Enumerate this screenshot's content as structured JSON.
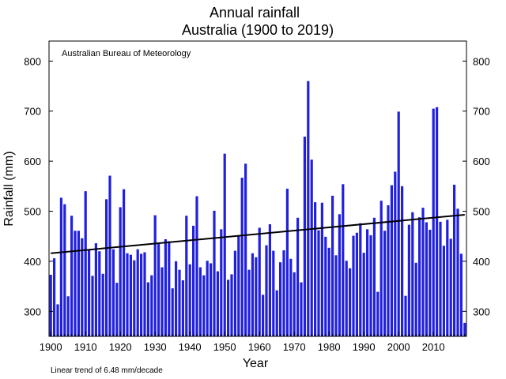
{
  "chart_data": {
    "type": "bar",
    "title": "Annual rainfall",
    "subtitle": "Australia (1900 to 2019)",
    "credit": "Australian Bureau of Meteorology",
    "xlabel": "Year",
    "ylabel": "Rainfall (mm)",
    "footnote": "Linear trend of 6.48 mm/decade",
    "ylim": [
      250,
      840
    ],
    "xlim": [
      1899.5,
      2019.5
    ],
    "yticks": [
      300,
      400,
      500,
      600,
      700,
      800
    ],
    "xticks": [
      1900,
      1910,
      1920,
      1930,
      1940,
      1950,
      1960,
      1970,
      1980,
      1990,
      2000,
      2010
    ],
    "bar_color": "#2020dd",
    "trend": {
      "start_year": 1900,
      "start_value": 416,
      "end_year": 2019,
      "end_value": 493
    },
    "years": [
      1900,
      1901,
      1902,
      1903,
      1904,
      1905,
      1906,
      1907,
      1908,
      1909,
      1910,
      1911,
      1912,
      1913,
      1914,
      1915,
      1916,
      1917,
      1918,
      1919,
      1920,
      1921,
      1922,
      1923,
      1924,
      1925,
      1926,
      1927,
      1928,
      1929,
      1930,
      1931,
      1932,
      1933,
      1934,
      1935,
      1936,
      1937,
      1938,
      1939,
      1940,
      1941,
      1942,
      1943,
      1944,
      1945,
      1946,
      1947,
      1948,
      1949,
      1950,
      1951,
      1952,
      1953,
      1954,
      1955,
      1956,
      1957,
      1958,
      1959,
      1960,
      1961,
      1962,
      1963,
      1964,
      1965,
      1966,
      1967,
      1968,
      1969,
      1970,
      1971,
      1972,
      1973,
      1974,
      1975,
      1976,
      1977,
      1978,
      1979,
      1980,
      1981,
      1982,
      1983,
      1984,
      1985,
      1986,
      1987,
      1988,
      1989,
      1990,
      1991,
      1992,
      1993,
      1994,
      1995,
      1996,
      1997,
      1998,
      1999,
      2000,
      2001,
      2002,
      2003,
      2004,
      2005,
      2006,
      2007,
      2008,
      2009,
      2010,
      2011,
      2012,
      2013,
      2014,
      2015,
      2016,
      2017,
      2018,
      2019
    ],
    "values": [
      373,
      406,
      314,
      527,
      514,
      330,
      491,
      461,
      461,
      446,
      540,
      424,
      371,
      436,
      420,
      375,
      524,
      571,
      424,
      357,
      508,
      544,
      416,
      413,
      402,
      424,
      415,
      418,
      358,
      372,
      492,
      435,
      388,
      444,
      440,
      346,
      400,
      383,
      362,
      491,
      394,
      471,
      530,
      388,
      372,
      401,
      396,
      501,
      380,
      464,
      615,
      363,
      374,
      421,
      452,
      567,
      595,
      383,
      416,
      408,
      467,
      333,
      432,
      474,
      421,
      342,
      398,
      422,
      545,
      405,
      378,
      487,
      358,
      649,
      760,
      603,
      518,
      462,
      517,
      449,
      427,
      531,
      412,
      494,
      554,
      401,
      386,
      451,
      457,
      476,
      417,
      464,
      452,
      487,
      339,
      521,
      461,
      512,
      552,
      579,
      699,
      550,
      331,
      473,
      498,
      397,
      488,
      507,
      478,
      463,
      705,
      708,
      479,
      431,
      483,
      445,
      553,
      505,
      415,
      277
    ]
  }
}
